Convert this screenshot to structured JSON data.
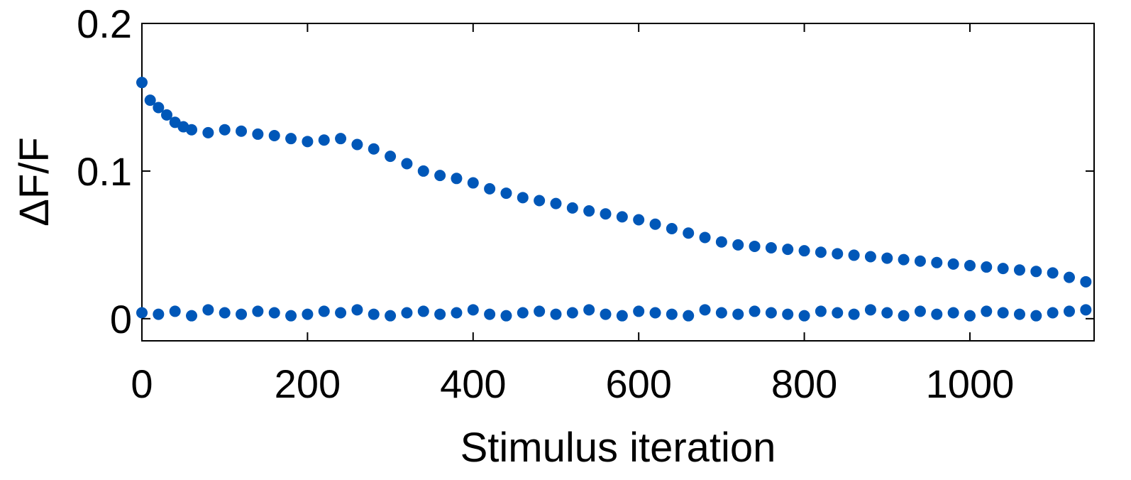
{
  "chart_data": {
    "type": "scatter",
    "title": "",
    "xlabel": "Stimulus iteration",
    "ylabel": "ΔF/F",
    "xlim": [
      0,
      1150
    ],
    "ylim": [
      -0.015,
      0.2
    ],
    "xticks": [
      0,
      200,
      400,
      600,
      800,
      1000
    ],
    "xtick_labels": [
      "0",
      "200",
      "400",
      "600",
      "800",
      "1000"
    ],
    "yticks": [
      0,
      0.1,
      0.2
    ],
    "ytick_labels": [
      "0",
      "0.1",
      "0.2"
    ],
    "grid": false,
    "legend": "none",
    "marker_color": "#0057B8",
    "series": [
      {
        "x": [
          0,
          10,
          20,
          30,
          40,
          50,
          60,
          80,
          100,
          120,
          140,
          160,
          180,
          200,
          220,
          240,
          260,
          280,
          300,
          320,
          340,
          360,
          380,
          400,
          420,
          440,
          460,
          480,
          500,
          520,
          540,
          560,
          580,
          600,
          620,
          640,
          660,
          680,
          700,
          720,
          740,
          760,
          780,
          800,
          820,
          840,
          860,
          880,
          900,
          920,
          940,
          960,
          980,
          1000,
          1020,
          1040,
          1060,
          1080,
          1100,
          1120,
          1140
        ],
        "values": [
          0.16,
          0.148,
          0.143,
          0.138,
          0.133,
          0.13,
          0.128,
          0.126,
          0.128,
          0.127,
          0.125,
          0.124,
          0.122,
          0.12,
          0.121,
          0.122,
          0.118,
          0.115,
          0.11,
          0.105,
          0.1,
          0.097,
          0.095,
          0.092,
          0.088,
          0.085,
          0.082,
          0.08,
          0.078,
          0.075,
          0.073,
          0.071,
          0.069,
          0.067,
          0.064,
          0.061,
          0.058,
          0.055,
          0.052,
          0.05,
          0.049,
          0.048,
          0.047,
          0.046,
          0.045,
          0.044,
          0.043,
          0.042,
          0.041,
          0.04,
          0.039,
          0.038,
          0.037,
          0.036,
          0.035,
          0.034,
          0.033,
          0.032,
          0.031,
          0.028,
          0.025
        ]
      },
      {
        "x": [
          0,
          20,
          40,
          60,
          80,
          100,
          120,
          140,
          160,
          180,
          200,
          220,
          240,
          260,
          280,
          300,
          320,
          340,
          360,
          380,
          400,
          420,
          440,
          460,
          480,
          500,
          520,
          540,
          560,
          580,
          600,
          620,
          640,
          660,
          680,
          700,
          720,
          740,
          760,
          780,
          800,
          820,
          840,
          860,
          880,
          900,
          920,
          940,
          960,
          980,
          1000,
          1020,
          1040,
          1060,
          1080,
          1100,
          1120,
          1140
        ],
        "values": [
          0.004,
          0.003,
          0.005,
          0.002,
          0.006,
          0.004,
          0.003,
          0.005,
          0.004,
          0.002,
          0.003,
          0.005,
          0.004,
          0.006,
          0.003,
          0.002,
          0.004,
          0.005,
          0.003,
          0.004,
          0.006,
          0.003,
          0.002,
          0.004,
          0.005,
          0.003,
          0.004,
          0.006,
          0.003,
          0.002,
          0.005,
          0.004,
          0.003,
          0.002,
          0.006,
          0.004,
          0.003,
          0.005,
          0.004,
          0.003,
          0.002,
          0.005,
          0.004,
          0.003,
          0.006,
          0.004,
          0.002,
          0.005,
          0.003,
          0.004,
          0.002,
          0.005,
          0.004,
          0.003,
          0.002,
          0.004,
          0.005,
          0.006
        ]
      }
    ]
  }
}
